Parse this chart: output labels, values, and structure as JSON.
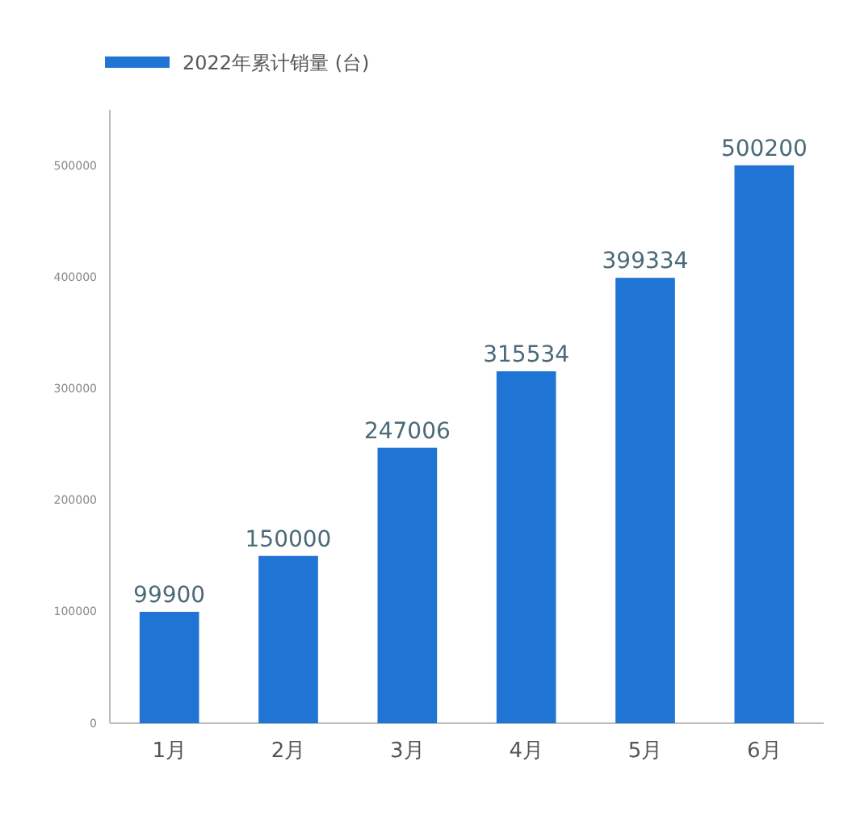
{
  "chart_data": {
    "type": "bar",
    "categories": [
      "1月",
      "2月",
      "3月",
      "4月",
      "5月",
      "6月"
    ],
    "series": [
      {
        "name": "2022年累计销量 (台)",
        "color": "#1f74d4",
        "values": [
          99900,
          150000,
          247006,
          315534,
          399334,
          500200
        ]
      }
    ],
    "ylim": [
      0,
      550000
    ],
    "yticks": [
      0,
      100000,
      200000,
      300000,
      400000,
      500000
    ],
    "grid": false,
    "legend": "top left",
    "data_labels": true
  }
}
